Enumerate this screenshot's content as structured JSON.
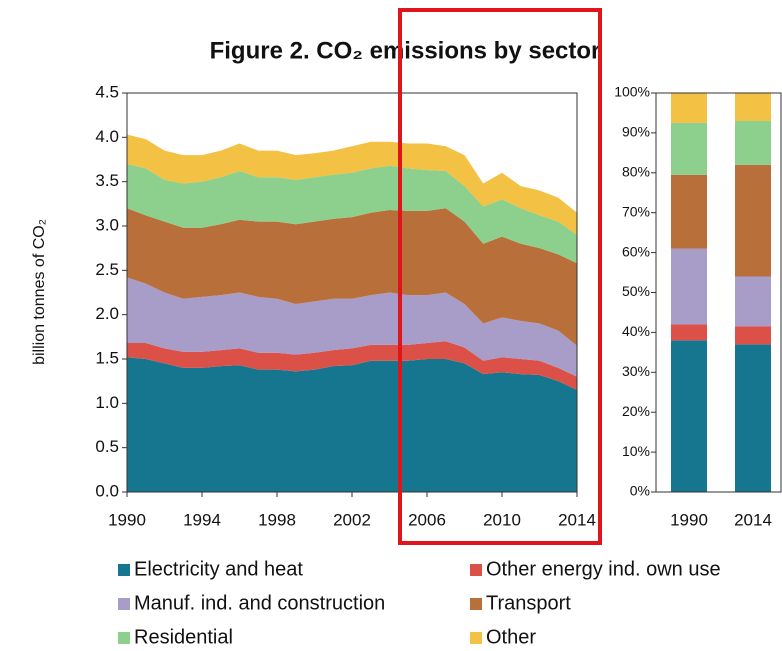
{
  "chart_data": [
    {
      "type": "stacked_area",
      "title": "Figure 2. CO₂ emissions by sector",
      "y_label": "billion tonnes of CO₂",
      "x": [
        1990,
        1991,
        1992,
        1993,
        1994,
        1995,
        1996,
        1997,
        1998,
        1999,
        2000,
        2001,
        2002,
        2003,
        2004,
        2005,
        2006,
        2007,
        2008,
        2009,
        2010,
        2011,
        2012,
        2013,
        2014
      ],
      "xlim": [
        1990,
        2014
      ],
      "xticks": [
        1990,
        1994,
        1998,
        2002,
        2006,
        2010,
        2014
      ],
      "ylim": [
        0,
        4.5
      ],
      "yticks": [
        {
          "value": 0,
          "label": "0.0"
        },
        0.5,
        {
          "value": 1,
          "label": "1.0"
        },
        1.5,
        {
          "value": 2,
          "label": "2.0"
        },
        2.5,
        {
          "value": 3,
          "label": "3.0"
        },
        3.5,
        {
          "value": 4,
          "label": "4.0"
        },
        4.5
      ],
      "series": [
        {
          "name": "Electricity and heat",
          "color": "#17768f",
          "values": [
            1.52,
            1.5,
            1.45,
            1.4,
            1.4,
            1.42,
            1.43,
            1.38,
            1.38,
            1.36,
            1.38,
            1.42,
            1.43,
            1.48,
            1.48,
            1.48,
            1.5,
            1.5,
            1.45,
            1.33,
            1.35,
            1.33,
            1.32,
            1.25,
            1.15
          ]
        },
        {
          "name": "Other energy ind. own use",
          "color": "#dc5147",
          "values": [
            0.16,
            0.18,
            0.17,
            0.18,
            0.18,
            0.18,
            0.19,
            0.19,
            0.19,
            0.19,
            0.19,
            0.18,
            0.19,
            0.18,
            0.18,
            0.18,
            0.18,
            0.2,
            0.18,
            0.15,
            0.17,
            0.17,
            0.16,
            0.15,
            0.15
          ]
        },
        {
          "name": "Manuf. ind. and construction",
          "color": "#a89cc8",
          "values": [
            0.74,
            0.67,
            0.63,
            0.6,
            0.62,
            0.62,
            0.63,
            0.63,
            0.61,
            0.57,
            0.58,
            0.58,
            0.56,
            0.56,
            0.59,
            0.56,
            0.54,
            0.55,
            0.49,
            0.42,
            0.45,
            0.43,
            0.42,
            0.42,
            0.35
          ]
        },
        {
          "name": "Transport",
          "color": "#b86f3a",
          "values": [
            0.78,
            0.77,
            0.8,
            0.8,
            0.78,
            0.8,
            0.82,
            0.85,
            0.87,
            0.9,
            0.9,
            0.9,
            0.92,
            0.93,
            0.93,
            0.95,
            0.95,
            0.95,
            0.93,
            0.9,
            0.91,
            0.87,
            0.85,
            0.86,
            0.93
          ]
        },
        {
          "name": "Residential",
          "color": "#8dcf8c",
          "values": [
            0.5,
            0.53,
            0.47,
            0.5,
            0.52,
            0.53,
            0.55,
            0.5,
            0.5,
            0.5,
            0.5,
            0.5,
            0.5,
            0.5,
            0.5,
            0.48,
            0.46,
            0.42,
            0.4,
            0.42,
            0.42,
            0.4,
            0.37,
            0.37,
            0.32
          ]
        },
        {
          "name": "Other",
          "color": "#f3c143",
          "values": [
            0.33,
            0.33,
            0.33,
            0.32,
            0.3,
            0.3,
            0.31,
            0.3,
            0.3,
            0.28,
            0.27,
            0.27,
            0.3,
            0.3,
            0.27,
            0.28,
            0.3,
            0.28,
            0.35,
            0.26,
            0.3,
            0.25,
            0.28,
            0.27,
            0.25
          ]
        }
      ]
    },
    {
      "type": "stacked_bar",
      "categories": [
        "1990",
        "2014"
      ],
      "ylim": [
        0,
        100
      ],
      "yticks": [
        {
          "value": 0,
          "label": "0%"
        },
        {
          "value": 10,
          "label": "10%"
        },
        {
          "value": 20,
          "label": "20%"
        },
        {
          "value": 30,
          "label": "30%"
        },
        {
          "value": 40,
          "label": "40%"
        },
        {
          "value": 50,
          "label": "50%"
        },
        {
          "value": 60,
          "label": "60%"
        },
        {
          "value": 70,
          "label": "70%"
        },
        {
          "value": 80,
          "label": "80%"
        },
        {
          "value": 90,
          "label": "90%"
        },
        {
          "value": 100,
          "label": "100%"
        }
      ],
      "series": [
        {
          "color": "#17768f",
          "values": [
            38,
            37
          ]
        },
        {
          "color": "#dc5147",
          "values": [
            4,
            4.5
          ]
        },
        {
          "color": "#a89cc8",
          "values": [
            19,
            12.5
          ]
        },
        {
          "color": "#b86f3a",
          "values": [
            18.5,
            28
          ]
        },
        {
          "color": "#8dcf8c",
          "values": [
            13,
            11
          ]
        },
        {
          "color": "#f3c143",
          "values": [
            7.5,
            7
          ]
        }
      ]
    }
  ]
}
